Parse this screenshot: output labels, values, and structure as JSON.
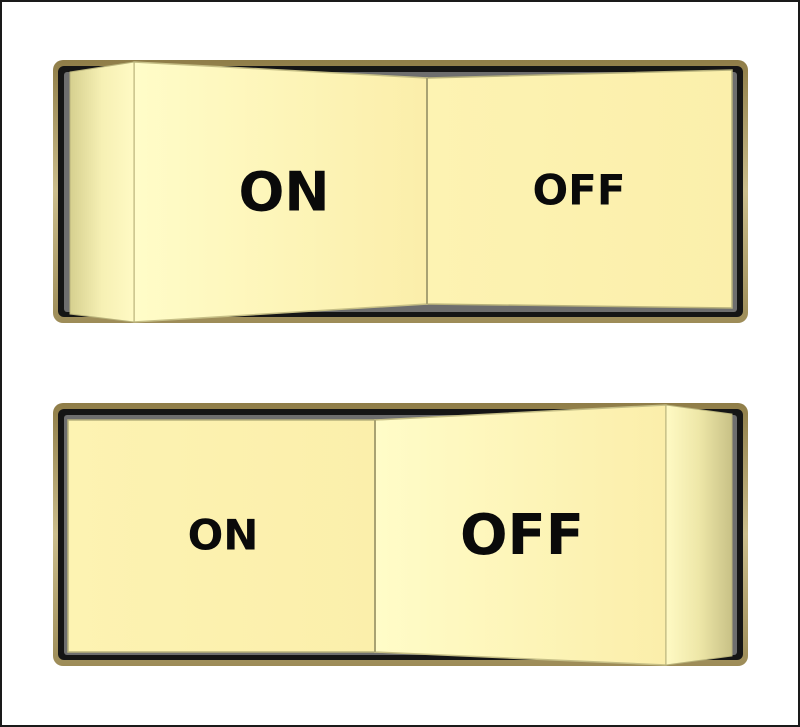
{
  "switches": [
    {
      "on_label": "ON",
      "off_label": "OFF",
      "state": "on"
    },
    {
      "on_label": "ON",
      "off_label": "OFF",
      "state": "off"
    }
  ],
  "colors": {
    "rocker_face": "#fdf4b4",
    "bezel": "#1a1a1a",
    "bezel_rim": "#c9b98a"
  }
}
